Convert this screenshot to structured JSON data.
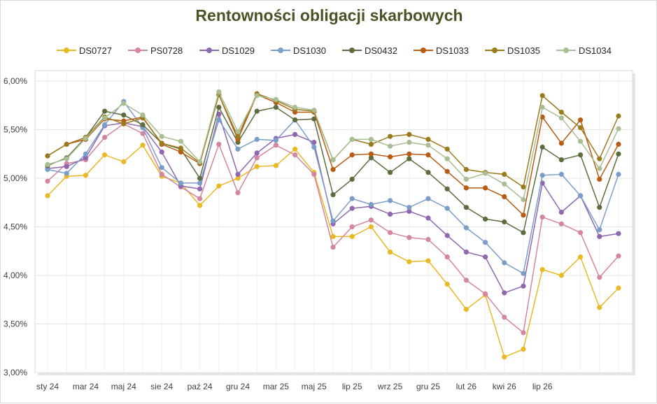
{
  "chart_data": {
    "type": "line",
    "title": "Rentowności obligacji skarbowych",
    "xlabel": "",
    "ylabel": "",
    "ylim": [
      0.03,
      0.06
    ],
    "y_ticks": [
      "3,00%",
      "3,50%",
      "4,00%",
      "4,50%",
      "5,00%",
      "5,50%",
      "6,00%"
    ],
    "y_tick_values": [
      0.03,
      0.035,
      0.04,
      0.045,
      0.05,
      0.055,
      0.06
    ],
    "x_tick_labels": [
      "sty 24",
      "mar 24",
      "maj 24",
      "sie 24",
      "paź 24",
      "gru 24",
      "mar 25",
      "maj 25",
      "lip 25",
      "wrz 25",
      "gru 25",
      "lut 26",
      "kwi 26",
      "lip 26"
    ],
    "x_tick_indices": [
      0,
      2,
      4,
      6,
      8,
      10,
      12,
      14,
      16,
      18,
      20,
      22,
      24,
      26
    ],
    "grid": "vertical and horizontal",
    "legend_position": "top",
    "series": [
      {
        "name": "DS0727",
        "color": "#e8b923",
        "values": [
          0.0482,
          0.0502,
          0.0503,
          0.0524,
          0.0517,
          0.0534,
          0.0502,
          0.0495,
          0.0472,
          0.0492,
          0.05,
          0.0512,
          0.0513,
          0.053,
          0.0506,
          0.044,
          0.044,
          0.045,
          0.0424,
          0.0414,
          0.0415,
          0.0391,
          0.0365,
          0.038,
          0.0316,
          0.0324,
          0.0406,
          0.04,
          0.0419,
          0.0367,
          0.0387
        ]
      },
      {
        "name": "PS0728",
        "color": "#d4869e",
        "values": [
          0.0497,
          0.0515,
          0.0519,
          0.0542,
          0.0556,
          0.0546,
          0.0504,
          0.0491,
          0.0479,
          0.0535,
          0.0485,
          0.0521,
          0.0534,
          0.0524,
          0.0504,
          0.0429,
          0.045,
          0.0457,
          0.0444,
          0.0439,
          0.0437,
          0.0419,
          0.0395,
          0.0381,
          0.0357,
          0.0341,
          0.046,
          0.0453,
          0.0444,
          0.0398,
          0.042
        ]
      },
      {
        "name": "DS1029",
        "color": "#8e67b0",
        "values": [
          0.051,
          0.0512,
          0.0521,
          0.0554,
          0.0557,
          0.0553,
          0.0527,
          0.0492,
          0.0489,
          0.0566,
          0.0504,
          0.0526,
          0.0541,
          0.0545,
          0.0537,
          0.0453,
          0.0469,
          0.0471,
          0.0463,
          0.0466,
          0.0459,
          0.0441,
          0.0424,
          0.0419,
          0.0382,
          0.0389,
          0.0495,
          0.0465,
          0.0482,
          0.044,
          0.0443
        ]
      },
      {
        "name": "DS1030",
        "color": "#7b9dc9",
        "values": [
          0.0509,
          0.0505,
          0.0525,
          0.0555,
          0.0579,
          0.0552,
          0.0511,
          0.0495,
          0.0495,
          0.056,
          0.053,
          0.054,
          0.0539,
          0.056,
          0.0532,
          0.0456,
          0.0479,
          0.0473,
          0.0477,
          0.047,
          0.0479,
          0.0469,
          0.0449,
          0.0434,
          0.0413,
          0.0402,
          0.0503,
          0.0504,
          0.0482,
          0.0447,
          0.0504
        ]
      },
      {
        "name": "DS0432",
        "color": "#5c6d3f",
        "values": [
          0.0513,
          0.0521,
          0.0542,
          0.0569,
          0.0565,
          0.0555,
          0.0536,
          0.053,
          0.05,
          0.0573,
          0.0537,
          0.0569,
          0.0573,
          0.056,
          0.0561,
          0.0483,
          0.0499,
          0.0521,
          0.0506,
          0.052,
          0.0506,
          0.0489,
          0.047,
          0.0458,
          0.0455,
          0.0444,
          0.0532,
          0.0519,
          0.0524,
          0.047,
          0.0525
        ]
      },
      {
        "name": "DS1033",
        "color": "#b85c14",
        "values": [
          0.0523,
          0.0535,
          0.054,
          0.0561,
          0.0559,
          0.0563,
          0.0535,
          0.0527,
          0.0515,
          0.0586,
          0.054,
          0.0586,
          0.0578,
          0.0568,
          0.0568,
          0.0509,
          0.0524,
          0.0525,
          0.0522,
          0.0525,
          0.0524,
          0.0507,
          0.049,
          0.049,
          0.0481,
          0.0462,
          0.0563,
          0.0536,
          0.056,
          0.0499,
          0.0535
        ]
      },
      {
        "name": "DS1035",
        "color": "#9a7a1c",
        "values": [
          0.0523,
          0.0535,
          0.0542,
          0.0563,
          0.0556,
          0.0562,
          0.0536,
          0.0531,
          0.0516,
          0.0586,
          0.0543,
          0.0587,
          0.058,
          0.0571,
          0.0569,
          0.0519,
          0.054,
          0.0535,
          0.0543,
          0.0545,
          0.054,
          0.053,
          0.0509,
          0.0506,
          0.0504,
          0.0491,
          0.0585,
          0.0568,
          0.0552,
          0.052,
          0.0564
        ]
      },
      {
        "name": "DS1034",
        "color": "#a9be92",
        "values": [
          0.0514,
          0.052,
          0.0541,
          0.0562,
          0.0577,
          0.0565,
          0.0543,
          0.0538,
          0.0517,
          0.0589,
          0.0548,
          0.0585,
          0.0581,
          0.0573,
          0.057,
          0.0519,
          0.054,
          0.054,
          0.0533,
          0.0537,
          0.0534,
          0.052,
          0.0499,
          0.0505,
          0.0494,
          0.0478,
          0.0573,
          0.0562,
          0.0538,
          0.051,
          0.0551
        ]
      }
    ]
  }
}
